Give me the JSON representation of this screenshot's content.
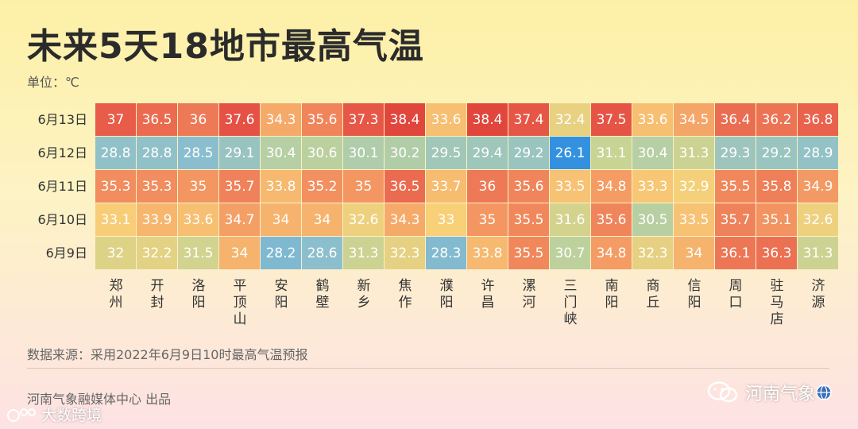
{
  "header": {
    "title": "未来5天18地市最高气温",
    "unit": "单位：℃"
  },
  "chart_data": {
    "type": "heatmap",
    "title": "未来5天18地市最高气温",
    "unit": "单位：℃",
    "rows": [
      "6月13日",
      "6月12日",
      "6月11日",
      "6月10日",
      "6月9日"
    ],
    "columns": [
      "郑州",
      "开封",
      "洛阳",
      "平顶山",
      "安阳",
      "鹤壁",
      "新乡",
      "焦作",
      "濮阳",
      "许昌",
      "漯河",
      "三门峡",
      "南阳",
      "商丘",
      "信阳",
      "周口",
      "驻马店",
      "济源"
    ],
    "values": [
      [
        "37",
        "36.5",
        "36",
        "37.6",
        "34.3",
        "35.6",
        "37.3",
        "38.4",
        "33.6",
        "38.4",
        "37.4",
        "32.4",
        "37.5",
        "33.6",
        "34.5",
        "36.4",
        "36.2",
        "36.8"
      ],
      [
        "28.8",
        "28.8",
        "28.5",
        "29.1",
        "30.4",
        "30.6",
        "30.1",
        "30.2",
        "29.5",
        "29.4",
        "29.2",
        "26.1",
        "31.1",
        "30.4",
        "31.3",
        "29.3",
        "29.2",
        "28.9"
      ],
      [
        "35.3",
        "35.3",
        "35",
        "35.7",
        "33.8",
        "35.2",
        "35",
        "36.5",
        "33.7",
        "36",
        "35.6",
        "33.5",
        "34.8",
        "33.3",
        "32.9",
        "35.5",
        "35.8",
        "34.9"
      ],
      [
        "33.1",
        "33.9",
        "33.6",
        "34.7",
        "34",
        "34",
        "32.6",
        "34.3",
        "33",
        "35",
        "35.5",
        "31.6",
        "35.6",
        "30.5",
        "33.5",
        "35.7",
        "35.1",
        "32.6"
      ],
      [
        "32",
        "32.2",
        "31.5",
        "34",
        "28.2",
        "28.6",
        "31.3",
        "32.3",
        "28.3",
        "33.8",
        "35.5",
        "30.7",
        "34.8",
        "32.3",
        "34",
        "36.1",
        "36.3",
        "31.3"
      ]
    ]
  },
  "footer": {
    "source": "数据来源：采用2022年6月9日10时最高气温预报",
    "producer": "河南气象融媒体中心 出品",
    "brand": "河南气象",
    "watermark": "大数跨境"
  },
  "colors": {
    "hot": "#e85b4a",
    "cool": "#2f8fe0"
  }
}
